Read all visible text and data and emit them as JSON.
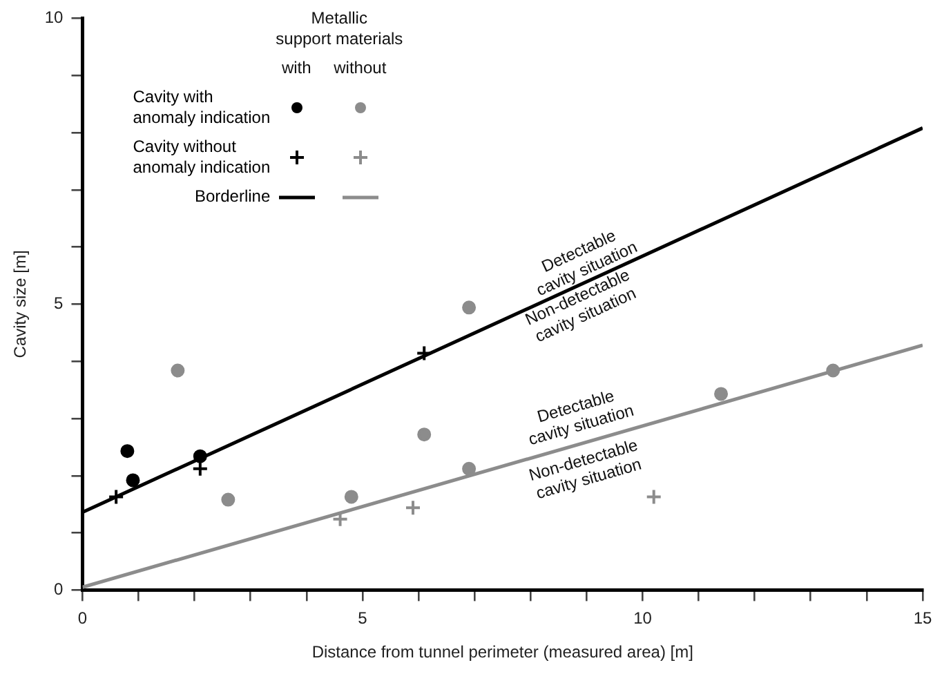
{
  "chart_data": {
    "type": "scatter",
    "xlabel": "Distance from tunnel perimeter (measured area) [m]",
    "ylabel": "Cavity size [m]",
    "legend_title": "Metallic\nsupport materials",
    "xlim": [
      0,
      15
    ],
    "ylim": [
      0,
      10
    ],
    "xticks": [
      0,
      {
        "value": 1,
        "label": null
      },
      {
        "value": 2,
        "label": null
      },
      {
        "value": 3,
        "label": null
      },
      {
        "value": 4,
        "label": null
      },
      5,
      {
        "value": 6,
        "label": null
      },
      {
        "value": 7,
        "label": null
      },
      {
        "value": 8,
        "label": null
      },
      {
        "value": 9,
        "label": null
      },
      10,
      {
        "value": 11,
        "label": null
      },
      {
        "value": 12,
        "label": null
      },
      {
        "value": 13,
        "label": null
      },
      {
        "value": 14,
        "label": null
      },
      15
    ],
    "yticks": [
      0,
      {
        "value": 1,
        "label": null
      },
      {
        "value": 2,
        "label": null
      },
      {
        "value": 3,
        "label": null
      },
      {
        "value": 4,
        "label": null
      },
      5,
      {
        "value": 6,
        "label": null
      },
      {
        "value": 7,
        "label": null
      },
      {
        "value": 8,
        "label": null
      },
      {
        "value": 9,
        "label": null
      },
      10
    ],
    "grid": false,
    "legend": "top left",
    "series": [
      {
        "name": "Cavity with\nanomaly indication",
        "marker": "circle",
        "color": "#000000",
        "x": [
          0.8,
          0.9,
          2.1
        ],
        "values": [
          2.43,
          1.92,
          2.34
        ]
      },
      {
        "name": "Cavity without\nanomaly indication",
        "marker": "cross",
        "color": "#000000",
        "x": [
          0.6,
          2.1,
          6.1
        ],
        "values": [
          1.63,
          2.12,
          4.14
        ]
      },
      {
        "name": "Borderline",
        "type": "line",
        "marker": "none",
        "color": "#000000",
        "x": [
          0,
          15
        ],
        "values": [
          1.36,
          8.08
        ]
      },
      {
        "marker": "circle",
        "color": "#8c8c8c",
        "x": [
          1.7,
          2.6,
          4.8,
          6.1,
          6.9,
          6.9,
          11.4,
          13.4
        ],
        "values": [
          3.84,
          1.58,
          1.63,
          2.72,
          4.94,
          2.12,
          3.43,
          3.84
        ]
      },
      {
        "marker": "cross",
        "color": "#8c8c8c",
        "x": [
          4.6,
          5.9,
          10.2
        ],
        "values": [
          1.24,
          1.44,
          1.63
        ]
      },
      {
        "type": "line",
        "marker": "none",
        "color": "#8c8c8c",
        "x": [
          0,
          15
        ],
        "values": [
          0.05,
          4.28
        ]
      }
    ],
    "annotations": [
      "with",
      "without",
      "Detectable\ncavity situation",
      "Non-detectable\ncavity situation",
      "Detectable\ncavity situation",
      "Non-detectable\ncavity situation"
    ]
  }
}
